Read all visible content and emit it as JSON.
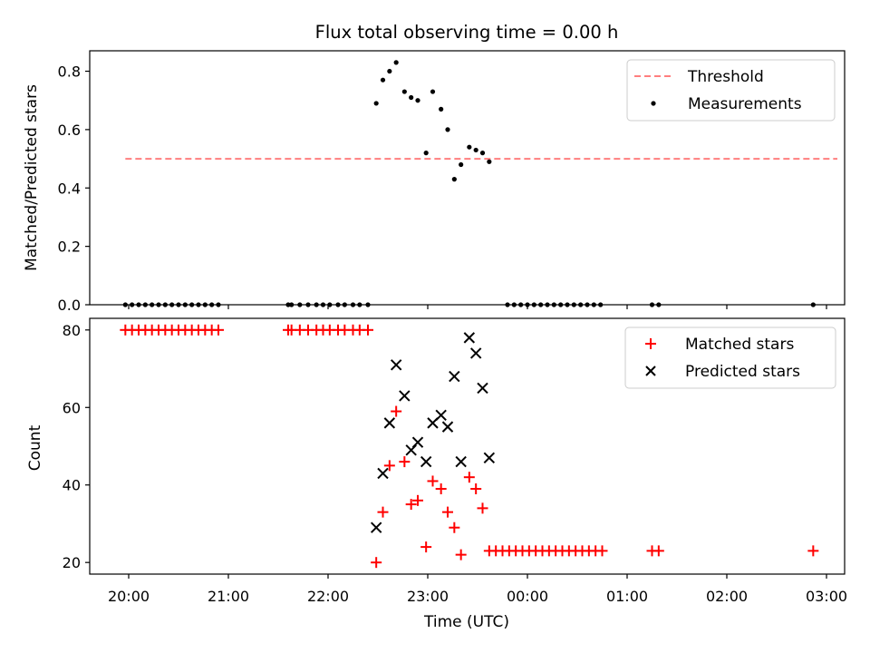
{
  "chart_data": [
    {
      "type": "scatter",
      "title": "Flux total observing time = 0.00 h",
      "xlabel": "",
      "ylabel": "Matched/Predicted stars",
      "xlim": [
        "19:34",
        "03:24"
      ],
      "ylim": [
        0.0,
        0.87
      ],
      "yticks": [
        0.0,
        0.2,
        0.4,
        0.6,
        0.8
      ],
      "ytick_labels": [
        "0.0",
        "0.2",
        "0.4",
        "0.6",
        "0.8"
      ],
      "grid": false,
      "legend_position": "upper right",
      "threshold": {
        "name": "Threshold",
        "value": 0.5,
        "x_range": [
          "19:58",
          "03:24"
        ],
        "color": "#ff7f7f",
        "style": "dashed"
      },
      "series": [
        {
          "name": "Measurements",
          "marker": "dot",
          "color": "#000000",
          "points": [
            [
              "19:58",
              0.0
            ],
            [
              "20:02",
              0.0
            ],
            [
              "20:06",
              0.0
            ],
            [
              "20:10",
              0.0
            ],
            [
              "20:14",
              0.0
            ],
            [
              "20:18",
              0.0
            ],
            [
              "20:22",
              0.0
            ],
            [
              "20:26",
              0.0
            ],
            [
              "20:30",
              0.0
            ],
            [
              "20:34",
              0.0
            ],
            [
              "20:38",
              0.0
            ],
            [
              "20:42",
              0.0
            ],
            [
              "20:46",
              0.0
            ],
            [
              "20:50",
              0.0
            ],
            [
              "20:54",
              0.0
            ],
            [
              "21:36",
              0.0
            ],
            [
              "21:38",
              0.0
            ],
            [
              "21:43",
              0.0
            ],
            [
              "21:48",
              0.0
            ],
            [
              "21:53",
              0.0
            ],
            [
              "21:57",
              0.0
            ],
            [
              "22:01",
              0.0
            ],
            [
              "22:06",
              0.0
            ],
            [
              "22:10",
              0.0
            ],
            [
              "22:15",
              0.0
            ],
            [
              "22:19",
              0.0
            ],
            [
              "22:24",
              0.0
            ],
            [
              "22:29",
              0.69
            ],
            [
              "22:33",
              0.77
            ],
            [
              "22:37",
              0.8
            ],
            [
              "22:41",
              0.83
            ],
            [
              "22:46",
              0.73
            ],
            [
              "22:50",
              0.71
            ],
            [
              "22:54",
              0.7
            ],
            [
              "22:59",
              0.52
            ],
            [
              "23:03",
              0.73
            ],
            [
              "23:08",
              0.67
            ],
            [
              "23:12",
              0.6
            ],
            [
              "23:16",
              0.43
            ],
            [
              "23:20",
              0.48
            ],
            [
              "23:25",
              0.54
            ],
            [
              "23:29",
              0.53
            ],
            [
              "23:33",
              0.52
            ],
            [
              "23:37",
              0.49
            ],
            [
              "23:48",
              0.0
            ],
            [
              "23:52",
              0.0
            ],
            [
              "23:56",
              0.0
            ],
            [
              "00:00",
              0.0
            ],
            [
              "00:04",
              0.0
            ],
            [
              "00:08",
              0.0
            ],
            [
              "00:12",
              0.0
            ],
            [
              "00:16",
              0.0
            ],
            [
              "00:20",
              0.0
            ],
            [
              "00:24",
              0.0
            ],
            [
              "00:28",
              0.0
            ],
            [
              "00:32",
              0.0
            ],
            [
              "00:36",
              0.0
            ],
            [
              "00:40",
              0.0
            ],
            [
              "00:44",
              0.0
            ],
            [
              "01:15",
              0.0
            ],
            [
              "01:19",
              0.0
            ],
            [
              "02:52",
              0.0
            ]
          ]
        }
      ]
    },
    {
      "type": "scatter",
      "title": "",
      "xlabel": "Time (UTC)",
      "ylabel": "Count",
      "xlim": [
        "19:34",
        "03:24"
      ],
      "ylim": [
        17,
        83
      ],
      "yticks": [
        20,
        40,
        60,
        80
      ],
      "ytick_labels": [
        "20",
        "40",
        "60",
        "80"
      ],
      "xticks": [
        "20:00",
        "21:00",
        "22:00",
        "23:00",
        "00:00",
        "01:00",
        "02:00",
        "03:00"
      ],
      "grid": false,
      "legend_position": "upper right",
      "series": [
        {
          "name": "Matched stars",
          "marker": "plus",
          "color": "#ff0000",
          "points": [
            [
              "19:58",
              80
            ],
            [
              "20:02",
              80
            ],
            [
              "20:06",
              80
            ],
            [
              "20:10",
              80
            ],
            [
              "20:14",
              80
            ],
            [
              "20:18",
              80
            ],
            [
              "20:22",
              80
            ],
            [
              "20:26",
              80
            ],
            [
              "20:30",
              80
            ],
            [
              "20:34",
              80
            ],
            [
              "20:38",
              80
            ],
            [
              "20:42",
              80
            ],
            [
              "20:46",
              80
            ],
            [
              "20:50",
              80
            ],
            [
              "20:54",
              80
            ],
            [
              "21:36",
              80
            ],
            [
              "21:38",
              80
            ],
            [
              "21:43",
              80
            ],
            [
              "21:48",
              80
            ],
            [
              "21:53",
              80
            ],
            [
              "21:57",
              80
            ],
            [
              "22:01",
              80
            ],
            [
              "22:06",
              80
            ],
            [
              "22:10",
              80
            ],
            [
              "22:15",
              80
            ],
            [
              "22:19",
              80
            ],
            [
              "22:24",
              80
            ],
            [
              "22:29",
              20
            ],
            [
              "22:33",
              33
            ],
            [
              "22:37",
              45
            ],
            [
              "22:41",
              59
            ],
            [
              "22:46",
              46
            ],
            [
              "22:50",
              35
            ],
            [
              "22:54",
              36
            ],
            [
              "22:59",
              24
            ],
            [
              "23:03",
              41
            ],
            [
              "23:08",
              39
            ],
            [
              "23:12",
              33
            ],
            [
              "23:16",
              29
            ],
            [
              "23:20",
              22
            ],
            [
              "23:25",
              42
            ],
            [
              "23:29",
              39
            ],
            [
              "23:33",
              34
            ],
            [
              "23:37",
              23
            ],
            [
              "23:41",
              23
            ],
            [
              "23:45",
              23
            ],
            [
              "23:49",
              23
            ],
            [
              "23:53",
              23
            ],
            [
              "23:57",
              23
            ],
            [
              "00:01",
              23
            ],
            [
              "00:05",
              23
            ],
            [
              "00:09",
              23
            ],
            [
              "00:13",
              23
            ],
            [
              "00:17",
              23
            ],
            [
              "00:21",
              23
            ],
            [
              "00:25",
              23
            ],
            [
              "00:29",
              23
            ],
            [
              "00:33",
              23
            ],
            [
              "00:37",
              23
            ],
            [
              "00:41",
              23
            ],
            [
              "00:45",
              23
            ],
            [
              "01:15",
              23
            ],
            [
              "01:19",
              23
            ],
            [
              "02:52",
              23
            ]
          ]
        },
        {
          "name": "Predicted stars",
          "marker": "x",
          "color": "#000000",
          "points": [
            [
              "22:29",
              29
            ],
            [
              "22:33",
              43
            ],
            [
              "22:37",
              56
            ],
            [
              "22:41",
              71
            ],
            [
              "22:46",
              63
            ],
            [
              "22:50",
              49
            ],
            [
              "22:54",
              51
            ],
            [
              "22:59",
              46
            ],
            [
              "23:03",
              56
            ],
            [
              "23:08",
              58
            ],
            [
              "23:12",
              55
            ],
            [
              "23:16",
              68
            ],
            [
              "23:20",
              46
            ],
            [
              "23:25",
              78
            ],
            [
              "23:29",
              74
            ],
            [
              "23:33",
              65
            ],
            [
              "23:37",
              47
            ]
          ]
        }
      ]
    }
  ]
}
